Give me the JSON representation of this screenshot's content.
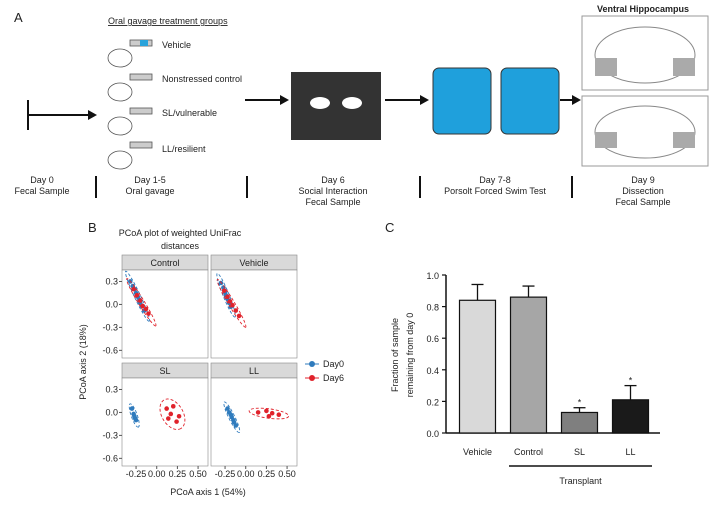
{
  "panel_labels": [
    "A",
    "B",
    "C"
  ],
  "timeline": {
    "treatment_title": "Oral gavage treatment groups",
    "groups": [
      "Vehicle",
      "Nonstressed control",
      "SL/vulnerable",
      "LL/resilient"
    ],
    "brain_title": "Ventral Hippocampus",
    "steps": [
      {
        "day": "Day 0",
        "lines": [
          "Fecal Sample"
        ]
      },
      {
        "day": "Day 1-5",
        "lines": [
          "Oral gavage"
        ]
      },
      {
        "day": "Day 6",
        "lines": [
          "Social Interaction",
          "Fecal Sample"
        ]
      },
      {
        "day": "Day 7-8",
        "lines": [
          "Porsolt Forced Swim Test"
        ]
      },
      {
        "day": "Day 9",
        "lines": [
          "Dissection",
          "Fecal Sample"
        ]
      }
    ]
  },
  "chart_data": [
    {
      "type": "scatter",
      "title": [
        "PCoA plot of weighted UniFrac",
        "distances"
      ],
      "xlabel": "PCoA axis 1 (54%)",
      "ylabel": "PCoA axis 2 (18%)",
      "xlim": [
        -0.42,
        0.62
      ],
      "ylim": [
        -0.7,
        0.45
      ],
      "xticks": [
        -0.25,
        {
          "value": 0,
          "label": "0.00"
        },
        0.25,
        {
          "value": 0.5,
          "label": "0.50"
        }
      ],
      "yticks": [
        0.3,
        {
          "value": 0,
          "label": "0.0"
        },
        -0.3,
        -0.6
      ],
      "series": [
        {
          "name": "Day0",
          "color": "#2f7bbd"
        },
        {
          "name": "Day6",
          "color": "#e0222b"
        }
      ],
      "facets": [
        {
          "title": "Control",
          "points": [
            {
              "x": [
                -0.32,
                -0.29,
                -0.27,
                -0.25,
                -0.23,
                -0.21,
                -0.2,
                -0.18,
                -0.15
              ],
              "y": [
                0.3,
                0.24,
                0.2,
                0.15,
                0.1,
                0.06,
                0.02,
                -0.02,
                -0.08
              ]
            },
            {
              "x": [
                -0.28,
                -0.24,
                -0.2,
                -0.17,
                -0.13,
                -0.1
              ],
              "y": [
                0.2,
                0.12,
                0.05,
                -0.02,
                -0.06,
                -0.12
              ]
            }
          ]
        },
        {
          "title": "Vehicle",
          "points": [
            {
              "x": [
                -0.3,
                -0.27,
                -0.25,
                -0.24,
                -0.22,
                -0.2,
                -0.18
              ],
              "y": [
                0.28,
                0.22,
                0.16,
                0.12,
                0.07,
                0.02,
                -0.03
              ]
            },
            {
              "x": [
                -0.26,
                -0.22,
                -0.19,
                -0.16,
                -0.12,
                -0.08
              ],
              "y": [
                0.18,
                0.1,
                0.04,
                -0.01,
                -0.08,
                -0.15
              ]
            }
          ]
        },
        {
          "title": "SL",
          "points": [
            {
              "x": [
                -0.3,
                -0.28,
                -0.27,
                -0.26,
                -0.25
              ],
              "y": [
                0.05,
                -0.02,
                -0.05,
                -0.08,
                -0.1
              ]
            },
            {
              "x": [
                0.12,
                0.2,
                0.17,
                0.27,
                0.24,
                0.14
              ],
              "y": [
                0.05,
                0.08,
                -0.02,
                -0.05,
                -0.12,
                -0.08
              ]
            }
          ]
        },
        {
          "title": "LL",
          "points": [
            {
              "x": [
                -0.22,
                -0.2,
                -0.18,
                -0.17,
                -0.15,
                -0.14,
                -0.12
              ],
              "y": [
                0.05,
                0.0,
                -0.03,
                -0.06,
                -0.1,
                -0.13,
                -0.17
              ]
            },
            {
              "x": [
                0.15,
                0.25,
                0.32,
                0.4,
                0.28
              ],
              "y": [
                0.0,
                0.02,
                -0.01,
                -0.03,
                -0.05
              ]
            }
          ]
        }
      ]
    },
    {
      "type": "bar",
      "ylabel": [
        "Fraction of sample",
        "remaining from day 0"
      ],
      "categories": [
        "Vehicle",
        "Control",
        "SL",
        "LL"
      ],
      "values": [
        0.84,
        0.86,
        0.13,
        0.21
      ],
      "errors": [
        0.1,
        0.07,
        0.03,
        0.09
      ],
      "colors": [
        "#d9d9d9",
        "#a6a6a6",
        "#7f7f7f",
        "#1a1a1a"
      ],
      "markers": [
        null,
        null,
        "*",
        "*"
      ],
      "group_label": "Transplant",
      "ylim": [
        0,
        1.0
      ],
      "yticks": [
        {
          "value": 0,
          "label": "0.0"
        },
        0.2,
        0.4,
        0.6,
        0.8,
        {
          "value": 1,
          "label": "1.0"
        }
      ]
    }
  ]
}
